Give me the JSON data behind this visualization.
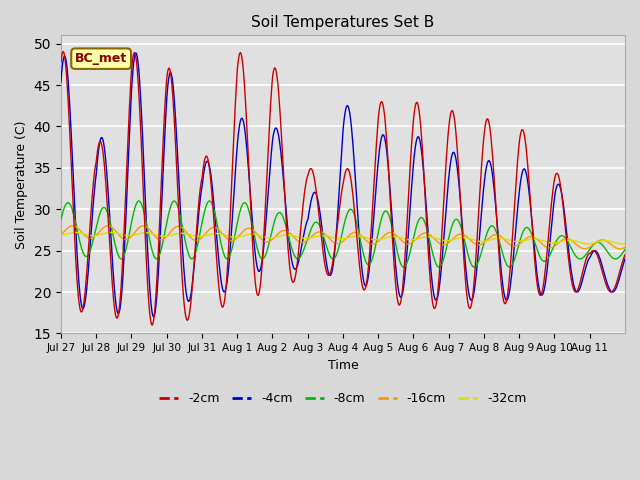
{
  "title": "Soil Temperatures Set B",
  "xlabel": "Time",
  "ylabel": "Soil Temperature (C)",
  "ylim": [
    15,
    51
  ],
  "yticks": [
    15,
    20,
    25,
    30,
    35,
    40,
    45,
    50
  ],
  "annotation": "BC_met",
  "series_colors": {
    "-2cm": "#cc0000",
    "-4cm": "#0000cc",
    "-8cm": "#00bb00",
    "-16cm": "#ff9900",
    "-32cm": "#dddd00"
  },
  "legend_labels": [
    "-2cm",
    "-4cm",
    "-8cm",
    "-16cm",
    "-32cm"
  ],
  "background_color": "#e0e0e0",
  "plot_bg_color": "#e0e0e0",
  "grid_color": "#ffffff",
  "n_days": 16,
  "pts_per_day": 48,
  "xtick_labels": [
    "Jul 27",
    "Jul 28",
    "Jul 29",
    "Jul 30",
    "Jul 31",
    "Aug 1",
    "Aug 2",
    "Aug 3",
    "Aug 4",
    "Aug 5",
    "Aug 6",
    "Aug 7",
    "Aug 8",
    "Aug 9",
    "Aug 10",
    "Aug 11"
  ]
}
